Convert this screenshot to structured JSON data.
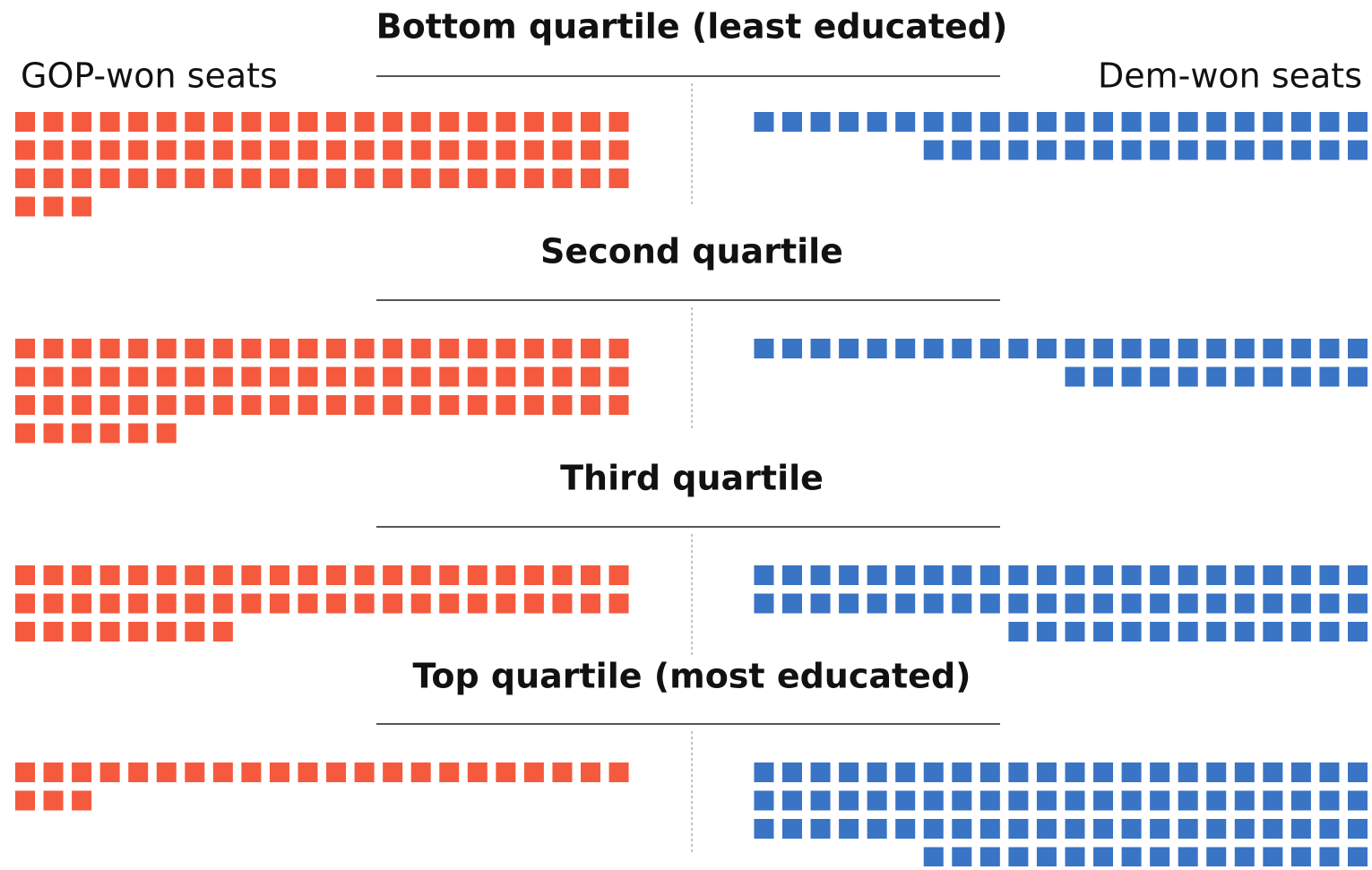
{
  "chart_data": {
    "type": "waffle",
    "categories": [
      "Bottom quartile (least educated)",
      "Second quartile",
      "Third quartile",
      "Top quartile (most educated)"
    ],
    "series": [
      {
        "name": "GOP-won seats",
        "color": "#f55a3e",
        "values": [
          69,
          72,
          52,
          25
        ]
      },
      {
        "name": "Dem-won seats",
        "color": "#3a74c5",
        "values": [
          38,
          33,
          57,
          82
        ]
      }
    ]
  }
}
